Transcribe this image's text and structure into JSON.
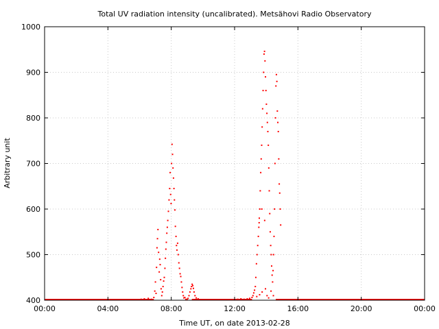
{
  "chart_data": {
    "type": "scatter",
    "title": "Total UV radiation intensity (uncalibrated). Metsähovi Radio Observatory",
    "xlabel": "Time UT, on date 2013-02-28",
    "ylabel": "Arbitrary unit",
    "x_unit": "time of day (hours UT)",
    "xlim": [
      0,
      24
    ],
    "ylim": [
      400,
      1000
    ],
    "x_ticks": [
      {
        "value": 0,
        "label": "00:00"
      },
      {
        "value": 4,
        "label": "04:00"
      },
      {
        "value": 8,
        "label": "08:00"
      },
      {
        "value": 12,
        "label": "12:00"
      },
      {
        "value": 16,
        "label": "16:00"
      },
      {
        "value": 20,
        "label": "20:00"
      },
      {
        "value": 24,
        "label": "00:00"
      }
    ],
    "y_ticks": [
      {
        "value": 400,
        "label": "400"
      },
      {
        "value": 500,
        "label": "500"
      },
      {
        "value": 600,
        "label": "600"
      },
      {
        "value": 700,
        "label": "700"
      },
      {
        "value": 800,
        "label": "800"
      },
      {
        "value": 900,
        "label": "900"
      },
      {
        "value": 1000,
        "label": "1000"
      }
    ],
    "grid": true,
    "series": [
      {
        "color": "#ff0000",
        "baseline": {
          "value": 400,
          "segments": [
            [
              0,
              6.9
            ],
            [
              9.3,
              13.1
            ],
            [
              14.6,
              24
            ]
          ]
        },
        "points": [
          [
            6.1,
            402
          ],
          [
            6.3,
            403
          ],
          [
            6.55,
            404
          ],
          [
            6.75,
            402
          ],
          [
            6.9,
            406
          ],
          [
            6.96,
            420
          ],
          [
            7.0,
            440
          ],
          [
            7.04,
            415
          ],
          [
            7.07,
            472
          ],
          [
            7.1,
            515
          ],
          [
            7.13,
            535
          ],
          [
            7.16,
            555
          ],
          [
            7.2,
            505
          ],
          [
            7.24,
            462
          ],
          [
            7.27,
            490
          ],
          [
            7.3,
            478
          ],
          [
            7.33,
            445
          ],
          [
            7.36,
            425
          ],
          [
            7.4,
            410
          ],
          [
            7.44,
            418
          ],
          [
            7.48,
            430
          ],
          [
            7.52,
            442
          ],
          [
            7.56,
            450
          ],
          [
            7.6,
            470
          ],
          [
            7.63,
            492
          ],
          [
            7.66,
            512
          ],
          [
            7.69,
            527
          ],
          [
            7.72,
            547
          ],
          [
            7.75,
            560
          ],
          [
            7.78,
            575
          ],
          [
            7.82,
            595
          ],
          [
            7.86,
            620
          ],
          [
            7.9,
            645
          ],
          [
            7.93,
            680
          ],
          [
            7.96,
            632
          ],
          [
            7.99,
            612
          ],
          [
            8.02,
            700
          ],
          [
            8.05,
            742
          ],
          [
            8.08,
            720
          ],
          [
            8.11,
            690
          ],
          [
            8.14,
            668
          ],
          [
            8.17,
            645
          ],
          [
            8.2,
            620
          ],
          [
            8.23,
            598
          ],
          [
            8.26,
            562
          ],
          [
            8.3,
            540
          ],
          [
            8.33,
            520
          ],
          [
            8.36,
            510
          ],
          [
            8.4,
            525
          ],
          [
            8.44,
            500
          ],
          [
            8.48,
            482
          ],
          [
            8.52,
            470
          ],
          [
            8.56,
            458
          ],
          [
            8.6,
            452
          ],
          [
            8.64,
            440
          ],
          [
            8.68,
            428
          ],
          [
            8.72,
            418
          ],
          [
            8.76,
            410
          ],
          [
            8.8,
            405
          ],
          [
            8.86,
            406
          ],
          [
            8.92,
            402
          ],
          [
            9.0,
            402
          ],
          [
            9.06,
            404
          ],
          [
            9.12,
            410
          ],
          [
            9.18,
            418
          ],
          [
            9.24,
            425
          ],
          [
            9.28,
            430
          ],
          [
            9.32,
            435
          ],
          [
            9.36,
            432
          ],
          [
            9.4,
            426
          ],
          [
            9.44,
            418
          ],
          [
            9.5,
            410
          ],
          [
            9.58,
            405
          ],
          [
            9.7,
            403
          ],
          [
            12.2,
            402
          ],
          [
            12.4,
            403
          ],
          [
            12.6,
            402
          ],
          [
            12.8,
            403
          ],
          [
            12.95,
            404
          ],
          [
            13.1,
            406
          ],
          [
            13.16,
            410
          ],
          [
            13.21,
            416
          ],
          [
            13.26,
            422
          ],
          [
            13.31,
            430
          ],
          [
            13.34,
            450
          ],
          [
            13.38,
            480
          ],
          [
            13.42,
            500
          ],
          [
            13.46,
            520
          ],
          [
            13.5,
            540
          ],
          [
            13.53,
            560
          ],
          [
            13.56,
            580
          ],
          [
            13.59,
            600
          ],
          [
            13.62,
            640
          ],
          [
            13.65,
            680
          ],
          [
            13.68,
            710
          ],
          [
            13.71,
            740
          ],
          [
            13.74,
            780
          ],
          [
            13.77,
            820
          ],
          [
            13.8,
            860
          ],
          [
            13.83,
            900
          ],
          [
            13.86,
            940
          ],
          [
            13.89,
            946
          ],
          [
            13.92,
            925
          ],
          [
            13.95,
            890
          ],
          [
            13.98,
            860
          ],
          [
            14.01,
            830
          ],
          [
            14.04,
            810
          ],
          [
            14.07,
            790
          ],
          [
            14.1,
            770
          ],
          [
            14.13,
            740
          ],
          [
            14.16,
            690
          ],
          [
            14.19,
            640
          ],
          [
            14.22,
            590
          ],
          [
            14.25,
            550
          ],
          [
            14.28,
            520
          ],
          [
            14.31,
            500
          ],
          [
            14.34,
            475
          ],
          [
            14.37,
            455
          ],
          [
            14.4,
            440
          ],
          [
            14.43,
            465
          ],
          [
            14.46,
            500
          ],
          [
            14.49,
            540
          ],
          [
            14.52,
            600
          ],
          [
            14.55,
            700
          ],
          [
            14.58,
            800
          ],
          [
            14.61,
            870
          ],
          [
            14.64,
            895
          ],
          [
            14.67,
            880
          ],
          [
            14.7,
            815
          ],
          [
            14.73,
            790
          ],
          [
            14.76,
            770
          ],
          [
            14.79,
            710
          ],
          [
            14.82,
            655
          ],
          [
            14.85,
            635
          ],
          [
            14.88,
            600
          ],
          [
            14.91,
            565
          ],
          [
            13.55,
            570
          ],
          [
            13.72,
            600
          ],
          [
            13.9,
            575
          ],
          [
            14.05,
            410
          ],
          [
            14.15,
            405
          ],
          [
            14.3,
            420
          ],
          [
            14.45,
            410
          ],
          [
            13.4,
            408
          ],
          [
            13.58,
            412
          ],
          [
            13.74,
            418
          ],
          [
            13.95,
            425
          ]
        ]
      }
    ]
  }
}
